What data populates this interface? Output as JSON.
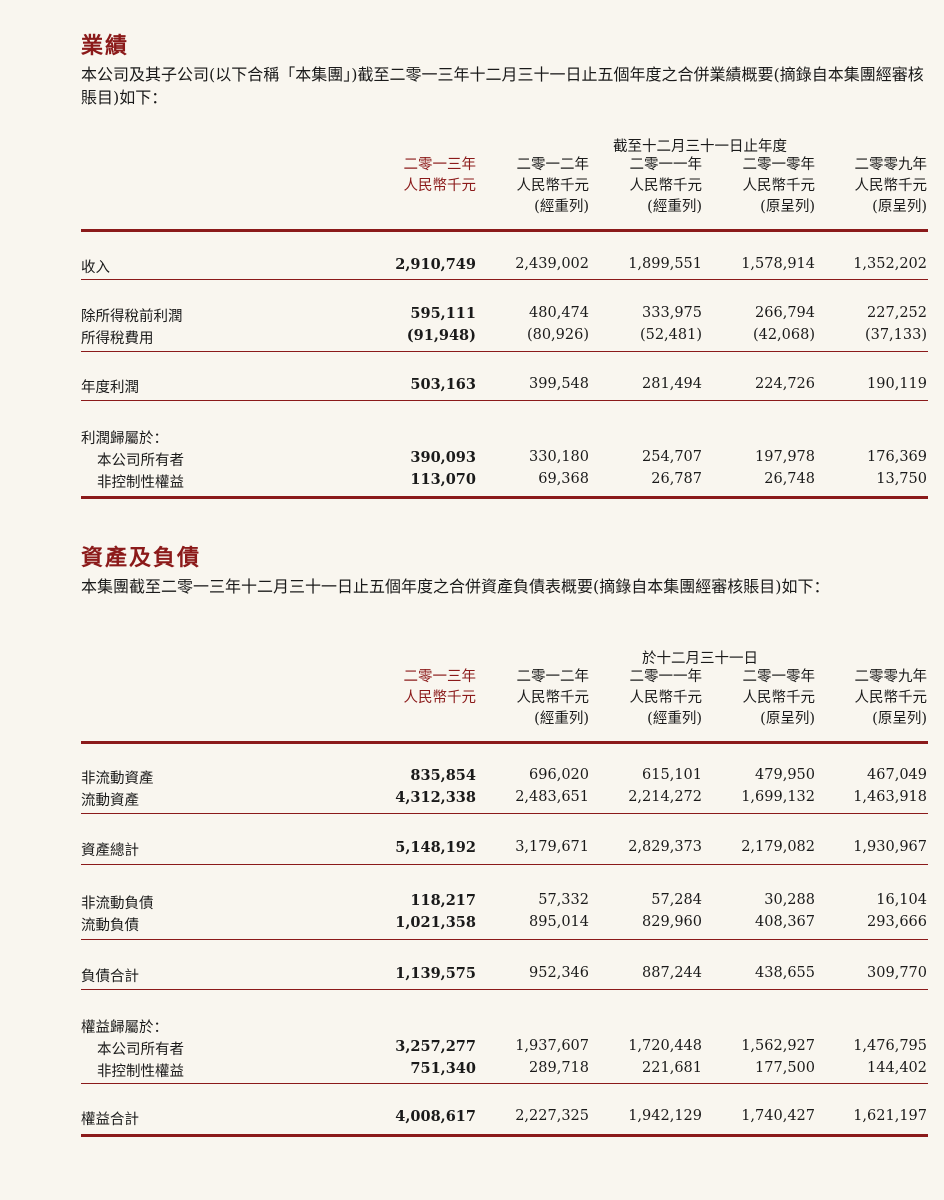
{
  "results": {
    "title": "業績",
    "intro": "本公司及其子公司(以下合稱「本集團」)截至二零一三年十二月三十一日止五個年度之合併業績概要(摘錄自本集團經審核賬目)如下：",
    "group_header": "截至十二月三十一日止年度",
    "columns": [
      {
        "year": "二零一三年",
        "unit": "人民幣千元",
        "note": ""
      },
      {
        "year": "二零一二年",
        "unit": "人民幣千元",
        "note": "(經重列)"
      },
      {
        "year": "二零一一年",
        "unit": "人民幣千元",
        "note": "(經重列)"
      },
      {
        "year": "二零一零年",
        "unit": "人民幣千元",
        "note": "(原呈列)"
      },
      {
        "year": "二零零九年",
        "unit": "人民幣千元",
        "note": "(原呈列)"
      }
    ],
    "rows": [
      {
        "label": "收入",
        "values": [
          "2,910,749",
          "2,439,002",
          "1,899,551",
          "1,578,914",
          "1,352,202"
        ]
      },
      {
        "label": "除所得稅前利潤",
        "values": [
          "595,111",
          "480,474",
          "333,975",
          "266,794",
          "227,252"
        ]
      },
      {
        "label": "所得稅費用",
        "values": [
          "(91,948)",
          "(80,926)",
          "(52,481)",
          "(42,068)",
          "(37,133)"
        ]
      },
      {
        "label": "年度利潤",
        "values": [
          "503,163",
          "399,548",
          "281,494",
          "224,726",
          "190,119"
        ]
      },
      {
        "label": "利潤歸屬於：",
        "values": [
          "",
          "",
          "",
          "",
          ""
        ]
      },
      {
        "label": "本公司所有者",
        "values": [
          "390,093",
          "330,180",
          "254,707",
          "197,978",
          "176,369"
        ]
      },
      {
        "label": "非控制性權益",
        "values": [
          "113,070",
          "69,368",
          "26,787",
          "26,748",
          "13,750"
        ]
      }
    ]
  },
  "balance": {
    "title": "資產及負債",
    "intro": "本集團截至二零一三年十二月三十一日止五個年度之合併資產負債表概要(摘錄自本集團經審核賬目)如下：",
    "group_header": "於十二月三十一日",
    "columns": [
      {
        "year": "二零一三年",
        "unit": "人民幣千元",
        "note": ""
      },
      {
        "year": "二零一二年",
        "unit": "人民幣千元",
        "note": "(經重列)"
      },
      {
        "year": "二零一一年",
        "unit": "人民幣千元",
        "note": "(經重列)"
      },
      {
        "year": "二零一零年",
        "unit": "人民幣千元",
        "note": "(原呈列)"
      },
      {
        "year": "二零零九年",
        "unit": "人民幣千元",
        "note": "(原呈列)"
      }
    ],
    "rows": [
      {
        "label": "非流動資產",
        "values": [
          "835,854",
          "696,020",
          "615,101",
          "479,950",
          "467,049"
        ]
      },
      {
        "label": "流動資產",
        "values": [
          "4,312,338",
          "2,483,651",
          "2,214,272",
          "1,699,132",
          "1,463,918"
        ]
      },
      {
        "label": "資產總計",
        "values": [
          "5,148,192",
          "3,179,671",
          "2,829,373",
          "2,179,082",
          "1,930,967"
        ]
      },
      {
        "label": "非流動負債",
        "values": [
          "118,217",
          "57,332",
          "57,284",
          "30,288",
          "16,104"
        ]
      },
      {
        "label": "流動負債",
        "values": [
          "1,021,358",
          "895,014",
          "829,960",
          "408,367",
          "293,666"
        ]
      },
      {
        "label": "負債合計",
        "values": [
          "1,139,575",
          "952,346",
          "887,244",
          "438,655",
          "309,770"
        ]
      },
      {
        "label": "權益歸屬於：",
        "values": [
          "",
          "",
          "",
          "",
          ""
        ]
      },
      {
        "label": "本公司所有者",
        "values": [
          "3,257,277",
          "1,937,607",
          "1,720,448",
          "1,562,927",
          "1,476,795"
        ]
      },
      {
        "label": "非控制性權益",
        "values": [
          "751,340",
          "289,718",
          "221,681",
          "177,500",
          "144,402"
        ]
      },
      {
        "label": "權益合計",
        "values": [
          "4,008,617",
          "2,227,325",
          "1,942,129",
          "1,740,427",
          "1,621,197"
        ]
      }
    ]
  },
  "colors": {
    "accent": "#8b1a1a",
    "background": "#f9f6ef"
  }
}
